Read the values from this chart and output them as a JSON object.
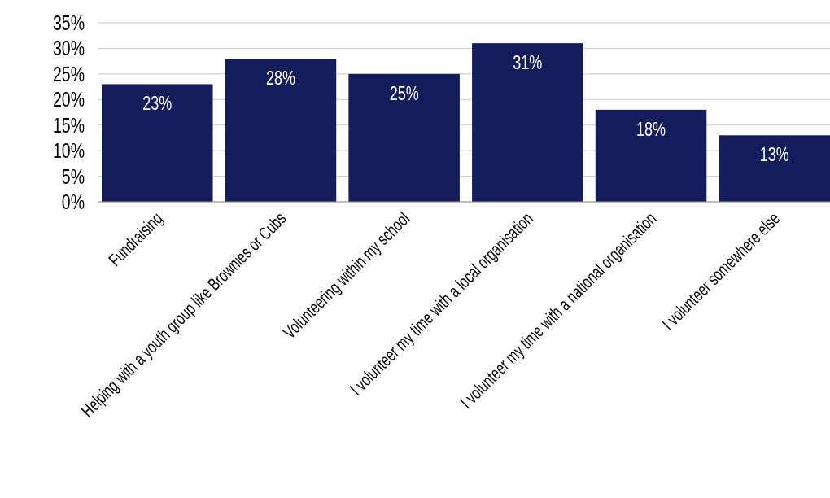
{
  "chart_data": {
    "type": "bar",
    "categories": [
      "Fundraising",
      "Helping with a youth group like Brownies or Cubs",
      "Volunteering within my school",
      "I volunteer my time with a local organisation",
      "I volunteer my time with a national organisation",
      "I volunteer somewhere else"
    ],
    "values": [
      23,
      28,
      25,
      31,
      18,
      13
    ],
    "value_labels": [
      "23%",
      "28%",
      "25%",
      "31%",
      "18%",
      "13%"
    ],
    "color": "#141c5c",
    "ylim": [
      0,
      35
    ],
    "yticks": [
      {
        "value": 0,
        "label": "0%"
      },
      {
        "value": 5,
        "label": "5%"
      },
      {
        "value": 10,
        "label": "10%"
      },
      {
        "value": 15,
        "label": "15%"
      },
      {
        "value": 20,
        "label": "20%"
      },
      {
        "value": 25,
        "label": "25%"
      },
      {
        "value": 30,
        "label": "30%"
      },
      {
        "value": 35,
        "label": "35%"
      }
    ],
    "grid": "y"
  }
}
